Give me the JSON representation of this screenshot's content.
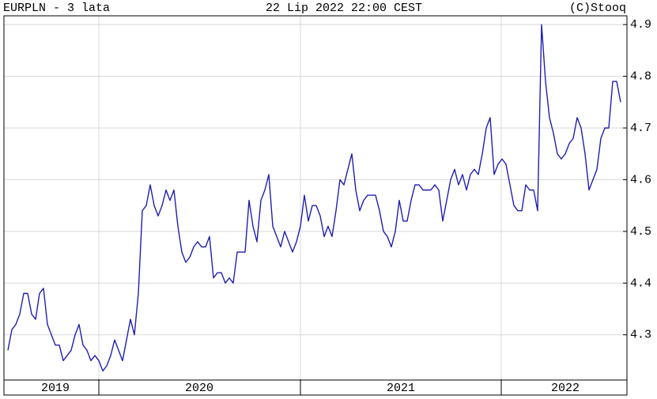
{
  "chart_data": {
    "type": "line",
    "title": "EURPLN - 3 lata",
    "subtitle": "22 Lip 2022 22:00 CEST",
    "source": "(C)Stooq",
    "year_labels": [
      "2019",
      "2020",
      "2021",
      "2022"
    ],
    "series": [
      {
        "name": "EURPLN",
        "color": "#1f1fb4",
        "values": [
          4.27,
          4.31,
          4.32,
          4.34,
          4.38,
          4.38,
          4.34,
          4.33,
          4.38,
          4.39,
          4.32,
          4.3,
          4.28,
          4.28,
          4.25,
          4.26,
          4.27,
          4.3,
          4.32,
          4.28,
          4.27,
          4.25,
          4.26,
          4.25,
          4.23,
          4.24,
          4.26,
          4.29,
          4.27,
          4.25,
          4.29,
          4.33,
          4.3,
          4.38,
          4.54,
          4.55,
          4.59,
          4.55,
          4.53,
          4.55,
          4.58,
          4.56,
          4.58,
          4.51,
          4.46,
          4.44,
          4.45,
          4.47,
          4.48,
          4.47,
          4.47,
          4.49,
          4.41,
          4.42,
          4.42,
          4.4,
          4.41,
          4.4,
          4.46,
          4.46,
          4.46,
          4.56,
          4.51,
          4.48,
          4.56,
          4.58,
          4.61,
          4.51,
          4.49,
          4.47,
          4.5,
          4.48,
          4.46,
          4.48,
          4.51,
          4.57,
          4.52,
          4.55,
          4.55,
          4.53,
          4.49,
          4.51,
          4.49,
          4.54,
          4.6,
          4.59,
          4.62,
          4.65,
          4.58,
          4.54,
          4.56,
          4.57,
          4.57,
          4.57,
          4.54,
          4.5,
          4.49,
          4.47,
          4.5,
          4.56,
          4.52,
          4.52,
          4.56,
          4.59,
          4.59,
          4.58,
          4.58,
          4.58,
          4.59,
          4.58,
          4.52,
          4.56,
          4.6,
          4.62,
          4.59,
          4.61,
          4.58,
          4.61,
          4.62,
          4.61,
          4.65,
          4.7,
          4.72,
          4.61,
          4.63,
          4.64,
          4.63,
          4.59,
          4.55,
          4.54,
          4.54,
          4.59,
          4.58,
          4.58,
          4.54,
          4.9,
          4.79,
          4.72,
          4.69,
          4.65,
          4.64,
          4.65,
          4.67,
          4.68,
          4.72,
          4.7,
          4.65,
          4.58,
          4.6,
          4.62,
          4.68,
          4.7,
          4.7,
          4.79,
          4.79,
          4.75
        ]
      }
    ],
    "ylim": [
      4.214,
      4.917
    ],
    "yticks": [
      4.3,
      4.4,
      4.5,
      4.6,
      4.7,
      4.8,
      4.9
    ],
    "grid": true
  }
}
